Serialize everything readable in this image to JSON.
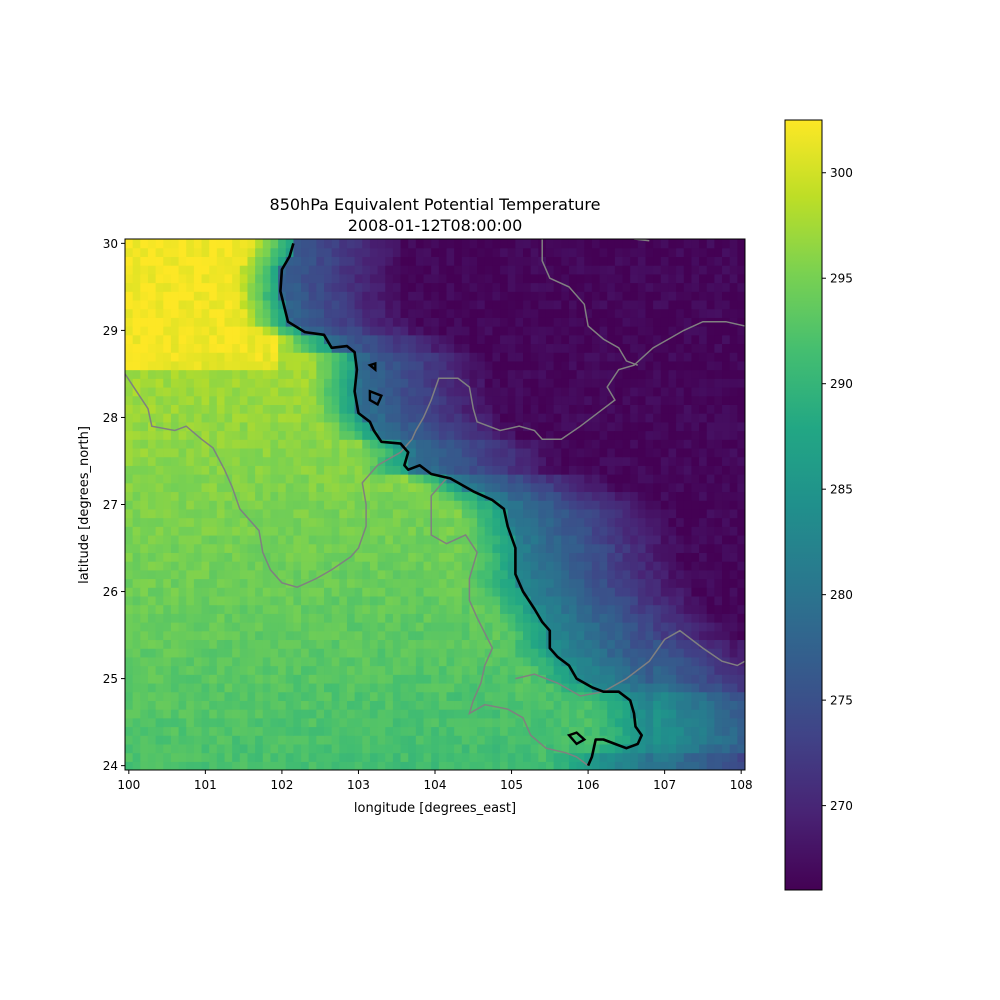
{
  "chart_data": {
    "type": "heatmap",
    "title": "850hPa Equivalent Potential Temperature",
    "subtitle": "2008-01-12T08:00:00",
    "xlabel": "longitude [degrees_east]",
    "ylabel": "latitude [degrees_north]",
    "xlim": [
      99.95,
      108.05
    ],
    "ylim": [
      23.95,
      30.05
    ],
    "x_ticks": [
      100,
      101,
      102,
      103,
      104,
      105,
      106,
      107,
      108
    ],
    "y_ticks": [
      24,
      25,
      26,
      27,
      28,
      29,
      30
    ],
    "colormap": "viridis",
    "colorbar": {
      "range": [
        266,
        302.5
      ],
      "ticks": [
        270,
        275,
        280,
        285,
        290,
        295,
        300
      ]
    },
    "contour": {
      "color": "#000000",
      "level_approx": 286,
      "main_line": [
        [
          102.15,
          30.0
        ],
        [
          102.1,
          29.85
        ],
        [
          102.0,
          29.7
        ],
        [
          101.98,
          29.45
        ],
        [
          102.08,
          29.1
        ],
        [
          102.3,
          28.98
        ],
        [
          102.55,
          28.95
        ],
        [
          102.65,
          28.8
        ],
        [
          102.85,
          28.82
        ],
        [
          102.95,
          28.75
        ],
        [
          102.98,
          28.55
        ],
        [
          102.95,
          28.3
        ],
        [
          103.0,
          28.05
        ],
        [
          103.15,
          27.95
        ],
        [
          103.2,
          27.85
        ],
        [
          103.3,
          27.72
        ],
        [
          103.55,
          27.7
        ],
        [
          103.65,
          27.6
        ],
        [
          103.6,
          27.45
        ],
        [
          103.65,
          27.4
        ],
        [
          103.8,
          27.45
        ],
        [
          103.95,
          27.35
        ],
        [
          104.2,
          27.3
        ],
        [
          104.5,
          27.15
        ],
        [
          104.75,
          27.05
        ],
        [
          104.9,
          26.95
        ],
        [
          104.95,
          26.75
        ],
        [
          105.05,
          26.5
        ],
        [
          105.05,
          26.2
        ],
        [
          105.15,
          26.0
        ],
        [
          105.3,
          25.8
        ],
        [
          105.4,
          25.65
        ],
        [
          105.5,
          25.55
        ],
        [
          105.5,
          25.35
        ],
        [
          105.6,
          25.25
        ],
        [
          105.75,
          25.15
        ],
        [
          105.85,
          25.0
        ],
        [
          106.05,
          24.9
        ],
        [
          106.2,
          24.85
        ],
        [
          106.4,
          24.85
        ],
        [
          106.55,
          24.75
        ],
        [
          106.6,
          24.6
        ],
        [
          106.62,
          24.45
        ],
        [
          106.7,
          24.35
        ],
        [
          106.65,
          24.25
        ],
        [
          106.5,
          24.2
        ],
        [
          106.35,
          24.25
        ],
        [
          106.2,
          24.3
        ],
        [
          106.1,
          24.3
        ],
        [
          106.05,
          24.1
        ],
        [
          106.0,
          24.0
        ]
      ],
      "islands": [
        [
          [
            103.15,
            28.3
          ],
          [
            103.3,
            28.25
          ],
          [
            103.25,
            28.15
          ],
          [
            103.15,
            28.2
          ],
          [
            103.15,
            28.3
          ]
        ],
        [
          [
            105.75,
            24.35
          ],
          [
            105.85,
            24.38
          ],
          [
            105.95,
            24.3
          ],
          [
            105.85,
            24.25
          ],
          [
            105.75,
            24.35
          ]
        ],
        [
          [
            103.15,
            28.6
          ],
          [
            103.22,
            28.62
          ],
          [
            103.22,
            28.55
          ],
          [
            103.15,
            28.6
          ]
        ]
      ]
    },
    "borders": {
      "color": "#808080",
      "lines": [
        [
          [
            99.95,
            28.5
          ],
          [
            100.1,
            28.3
          ],
          [
            100.25,
            28.1
          ],
          [
            100.3,
            27.9
          ],
          [
            100.6,
            27.85
          ],
          [
            100.75,
            27.9
          ],
          [
            100.95,
            27.75
          ],
          [
            101.1,
            27.65
          ],
          [
            101.25,
            27.4
          ],
          [
            101.35,
            27.2
          ],
          [
            101.45,
            26.95
          ],
          [
            101.55,
            26.85
          ],
          [
            101.7,
            26.7
          ],
          [
            101.75,
            26.45
          ],
          [
            101.85,
            26.25
          ],
          [
            102.0,
            26.1
          ],
          [
            102.2,
            26.05
          ],
          [
            102.45,
            26.15
          ],
          [
            102.65,
            26.25
          ],
          [
            102.9,
            26.4
          ],
          [
            103.0,
            26.5
          ],
          [
            103.1,
            26.75
          ],
          [
            103.1,
            27.0
          ],
          [
            103.05,
            27.25
          ],
          [
            103.25,
            27.45
          ],
          [
            103.55,
            27.6
          ],
          [
            103.7,
            27.75
          ],
          [
            103.75,
            27.85
          ],
          [
            103.85,
            28.0
          ],
          [
            103.95,
            28.2
          ],
          [
            104.05,
            28.45
          ],
          [
            104.3,
            28.45
          ],
          [
            104.45,
            28.35
          ],
          [
            104.5,
            28.1
          ],
          [
            104.55,
            27.95
          ],
          [
            104.85,
            27.85
          ],
          [
            105.1,
            27.9
          ],
          [
            105.3,
            27.85
          ],
          [
            105.4,
            27.75
          ],
          [
            105.65,
            27.75
          ],
          [
            105.9,
            27.9
          ],
          [
            106.2,
            28.1
          ],
          [
            106.35,
            28.2
          ],
          [
            106.25,
            28.35
          ],
          [
            106.4,
            28.55
          ],
          [
            106.6,
            28.6
          ],
          [
            106.85,
            28.8
          ],
          [
            107.05,
            28.9
          ],
          [
            107.25,
            29.0
          ],
          [
            107.5,
            29.1
          ],
          [
            107.8,
            29.1
          ],
          [
            108.05,
            29.05
          ]
        ],
        [
          [
            105.4,
            30.05
          ],
          [
            105.4,
            29.8
          ],
          [
            105.5,
            29.6
          ],
          [
            105.75,
            29.5
          ],
          [
            105.95,
            29.3
          ],
          [
            106.0,
            29.05
          ],
          [
            106.2,
            28.9
          ],
          [
            106.4,
            28.8
          ],
          [
            106.5,
            28.65
          ],
          [
            106.65,
            28.6
          ]
        ],
        [
          [
            106.6,
            30.05
          ],
          [
            106.8,
            30.03
          ]
        ],
        [
          [
            104.15,
            27.3
          ],
          [
            104.05,
            27.2
          ],
          [
            103.95,
            27.1
          ],
          [
            103.95,
            26.85
          ],
          [
            103.95,
            26.65
          ],
          [
            104.15,
            26.55
          ],
          [
            104.4,
            26.65
          ],
          [
            104.55,
            26.45
          ],
          [
            104.45,
            26.15
          ],
          [
            104.45,
            25.9
          ],
          [
            104.55,
            25.7
          ],
          [
            104.75,
            25.35
          ],
          [
            104.65,
            25.15
          ],
          [
            104.6,
            24.95
          ],
          [
            104.5,
            24.75
          ],
          [
            104.45,
            24.6
          ],
          [
            104.65,
            24.7
          ],
          [
            104.95,
            24.65
          ],
          [
            105.15,
            24.55
          ],
          [
            105.25,
            24.35
          ],
          [
            105.45,
            24.2
          ],
          [
            105.7,
            24.15
          ],
          [
            105.85,
            24.1
          ],
          [
            106.0,
            24.0
          ]
        ],
        [
          [
            105.05,
            25.0
          ],
          [
            105.3,
            25.05
          ],
          [
            105.6,
            24.95
          ],
          [
            105.9,
            24.8
          ],
          [
            106.2,
            24.85
          ],
          [
            106.5,
            25.0
          ],
          [
            106.8,
            25.2
          ],
          [
            107.0,
            25.45
          ],
          [
            107.2,
            25.55
          ],
          [
            107.5,
            25.35
          ],
          [
            107.75,
            25.2
          ],
          [
            107.95,
            25.15
          ],
          [
            108.05,
            25.2
          ]
        ]
      ]
    },
    "field_description_anchors": [
      {
        "lon": 100.5,
        "lat": 29.0,
        "value": 301
      },
      {
        "lon": 101.5,
        "lat": 27.0,
        "value": 296
      },
      {
        "lon": 104.0,
        "lat": 25.5,
        "value": 297.5
      },
      {
        "lon": 106.0,
        "lat": 26.0,
        "value": 279
      },
      {
        "lon": 107.5,
        "lat": 28.0,
        "value": 268
      },
      {
        "lon": 106.5,
        "lat": 29.5,
        "value": 270
      }
    ]
  }
}
